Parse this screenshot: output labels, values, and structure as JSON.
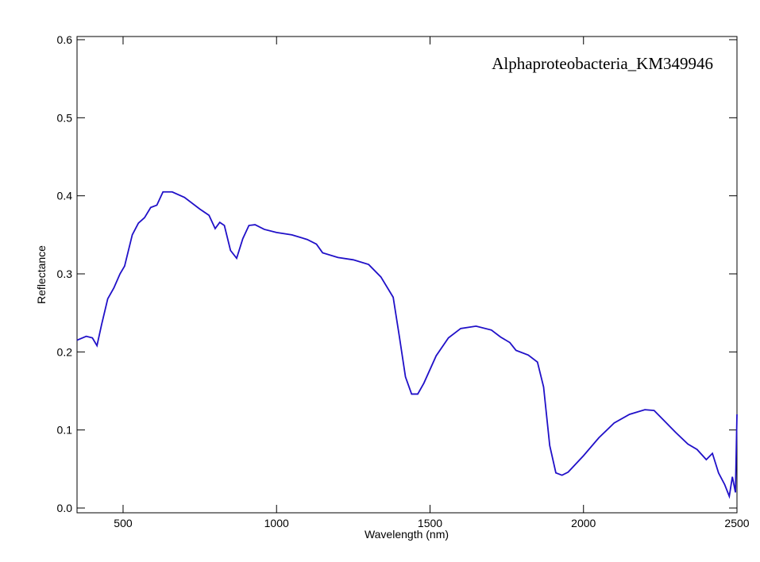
{
  "chart_data": {
    "type": "line",
    "annotation": "Alphaproteobacteria_KM349946",
    "xlabel": "Wavelength (nm)",
    "ylabel": "Reflectance",
    "xlim": [
      350,
      2500
    ],
    "ylim": [
      0,
      0.6
    ],
    "xticks": [
      500,
      1000,
      1500,
      2000,
      2500
    ],
    "yticks": [
      {
        "value": 0,
        "label": "0.0"
      },
      0.1,
      0.2,
      0.3,
      0.4,
      0.5,
      0.6
    ],
    "x": [
      350,
      380,
      400,
      415,
      430,
      450,
      470,
      490,
      505,
      530,
      550,
      570,
      590,
      610,
      630,
      660,
      700,
      750,
      780,
      800,
      815,
      830,
      850,
      870,
      890,
      910,
      930,
      960,
      1000,
      1050,
      1100,
      1130,
      1150,
      1200,
      1250,
      1300,
      1340,
      1380,
      1400,
      1420,
      1440,
      1460,
      1480,
      1520,
      1560,
      1600,
      1650,
      1700,
      1730,
      1760,
      1780,
      1820,
      1850,
      1870,
      1890,
      1910,
      1930,
      1950,
      2000,
      2050,
      2100,
      2150,
      2200,
      2230,
      2260,
      2300,
      2340,
      2370,
      2400,
      2420,
      2440,
      2460,
      2475,
      2485,
      2495,
      2500
    ],
    "series": [
      {
        "color": "#2010c8",
        "values": [
          0.215,
          0.22,
          0.218,
          0.208,
          0.235,
          0.268,
          0.282,
          0.3,
          0.31,
          0.35,
          0.365,
          0.372,
          0.385,
          0.388,
          0.405,
          0.405,
          0.398,
          0.383,
          0.375,
          0.358,
          0.366,
          0.362,
          0.33,
          0.32,
          0.345,
          0.362,
          0.363,
          0.357,
          0.353,
          0.35,
          0.344,
          0.338,
          0.327,
          0.321,
          0.318,
          0.312,
          0.296,
          0.27,
          0.22,
          0.168,
          0.146,
          0.146,
          0.16,
          0.195,
          0.218,
          0.23,
          0.233,
          0.228,
          0.219,
          0.212,
          0.202,
          0.196,
          0.187,
          0.155,
          0.08,
          0.045,
          0.042,
          0.046,
          0.067,
          0.09,
          0.109,
          0.12,
          0.126,
          0.125,
          0.113,
          0.097,
          0.082,
          0.075,
          0.062,
          0.07,
          0.045,
          0.03,
          0.015,
          0.04,
          0.02,
          0.12
        ]
      }
    ]
  }
}
